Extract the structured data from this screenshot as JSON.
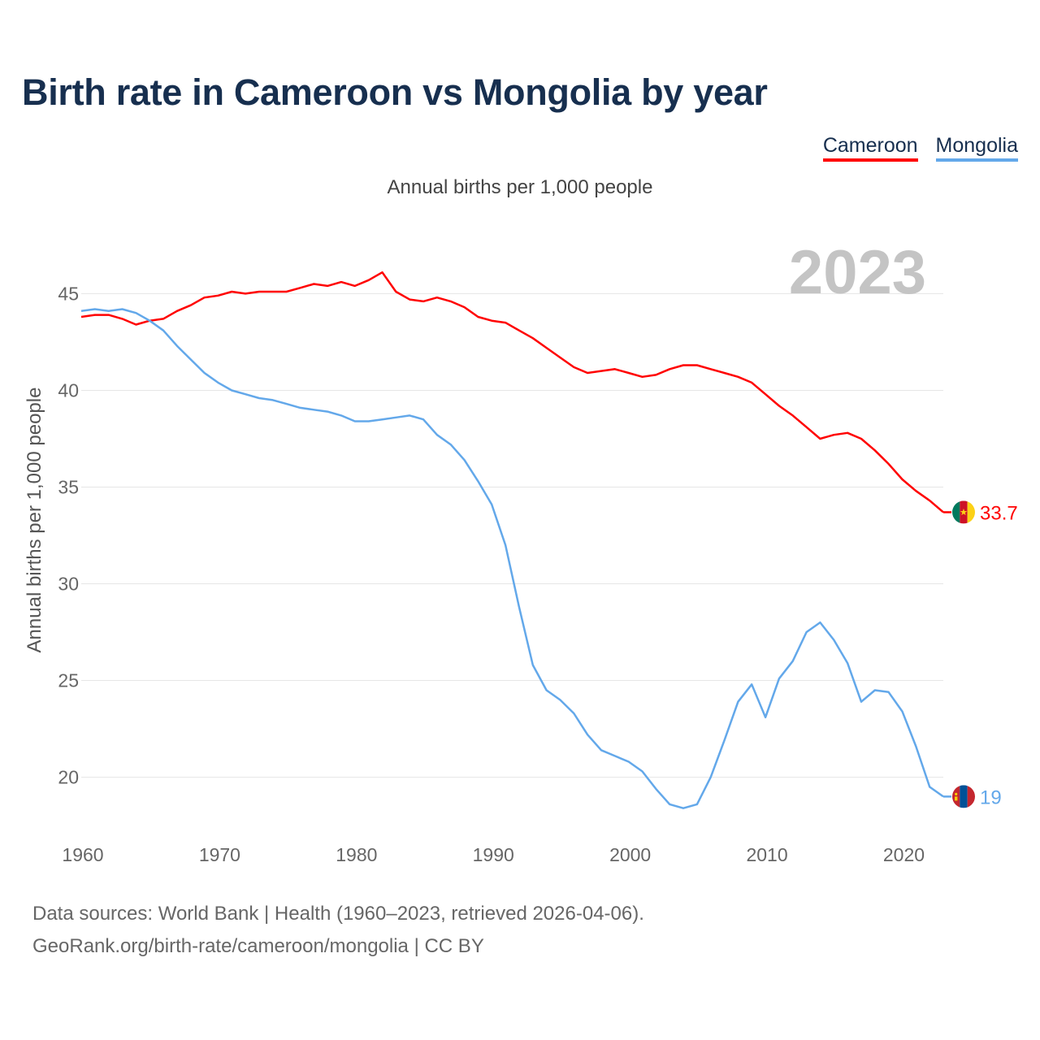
{
  "title": "Birth rate in Cameroon vs Mongolia by year",
  "subtitle": "Annual births per 1,000 people",
  "year_watermark": "2023",
  "legend": [
    {
      "name": "Cameroon",
      "color": "#ff0000"
    },
    {
      "name": "Mongolia",
      "color": "#63a8ea"
    }
  ],
  "footer": {
    "line1": "Data sources: World Bank | Health (1960–2023, retrieved 2026-04-06).",
    "line2": "GeoRank.org/birth-rate/cameroon/mongolia | CC BY"
  },
  "chart_data": {
    "type": "line",
    "title": "Birth rate in Cameroon vs Mongolia by year",
    "xlabel": "",
    "ylabel": "Annual births per 1,000 people",
    "xlim": [
      1960,
      2023
    ],
    "ylim": [
      17,
      48
    ],
    "yticks": [
      20,
      25,
      30,
      35,
      40,
      45
    ],
    "xticks": [
      1960,
      1970,
      1980,
      1990,
      2000,
      2010,
      2020
    ],
    "grid": true,
    "x": [
      1960,
      1961,
      1962,
      1963,
      1964,
      1965,
      1966,
      1967,
      1968,
      1969,
      1970,
      1971,
      1972,
      1973,
      1974,
      1975,
      1976,
      1977,
      1978,
      1979,
      1980,
      1981,
      1982,
      1983,
      1984,
      1985,
      1986,
      1987,
      1988,
      1989,
      1990,
      1991,
      1992,
      1993,
      1994,
      1995,
      1996,
      1997,
      1998,
      1999,
      2000,
      2001,
      2002,
      2003,
      2004,
      2005,
      2006,
      2007,
      2008,
      2009,
      2010,
      2011,
      2012,
      2013,
      2014,
      2015,
      2016,
      2017,
      2018,
      2019,
      2020,
      2021,
      2022,
      2023
    ],
    "series": [
      {
        "name": "Cameroon",
        "color": "#ff0000",
        "end_label": "33.7",
        "values": [
          43.8,
          43.9,
          43.9,
          43.7,
          43.4,
          43.6,
          43.7,
          44.1,
          44.4,
          44.8,
          44.9,
          45.1,
          45.0,
          45.1,
          45.1,
          45.1,
          45.3,
          45.5,
          45.4,
          45.6,
          45.4,
          45.7,
          46.1,
          45.1,
          44.7,
          44.6,
          44.8,
          44.6,
          44.3,
          43.8,
          43.6,
          43.5,
          43.1,
          42.7,
          42.2,
          41.7,
          41.2,
          40.9,
          41.0,
          41.1,
          40.9,
          40.7,
          40.8,
          41.1,
          41.3,
          41.3,
          41.1,
          40.9,
          40.7,
          40.4,
          39.8,
          39.2,
          38.7,
          38.1,
          37.5,
          37.7,
          37.8,
          37.5,
          36.9,
          36.2,
          35.4,
          34.8,
          34.3,
          33.7
        ]
      },
      {
        "name": "Mongolia",
        "color": "#63a8ea",
        "end_label": "19",
        "values": [
          44.1,
          44.2,
          44.1,
          44.2,
          44.0,
          43.6,
          43.1,
          42.3,
          41.6,
          40.9,
          40.4,
          40.0,
          39.8,
          39.6,
          39.5,
          39.3,
          39.1,
          39.0,
          38.9,
          38.7,
          38.4,
          38.4,
          38.5,
          38.6,
          38.7,
          38.5,
          37.7,
          37.2,
          36.4,
          35.3,
          34.1,
          32.0,
          28.8,
          25.8,
          24.5,
          24.0,
          23.3,
          22.2,
          21.4,
          21.1,
          20.8,
          20.3,
          19.4,
          18.6,
          18.4,
          18.6,
          20.0,
          21.9,
          23.9,
          24.8,
          23.1,
          25.1,
          26.0,
          27.5,
          28.0,
          27.1,
          25.9,
          23.9,
          24.5,
          24.4,
          23.4,
          21.6,
          19.5,
          19.0
        ]
      }
    ]
  }
}
